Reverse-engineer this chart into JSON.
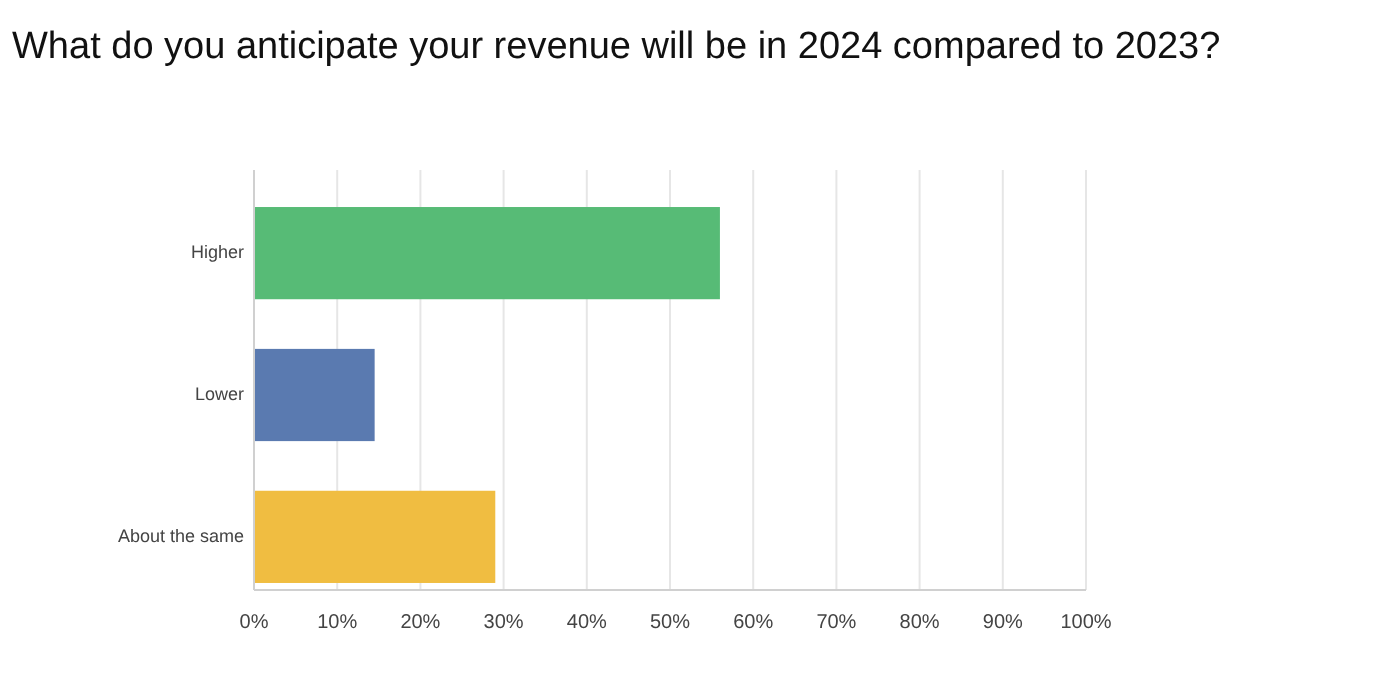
{
  "chart_data": {
    "type": "bar",
    "orientation": "horizontal",
    "title": "What do you anticipate your revenue will be in 2024 compared to 2023?",
    "categories": [
      "Higher",
      "Lower",
      "About the same"
    ],
    "values": [
      56,
      14.5,
      29
    ],
    "colors": [
      "#57bb76",
      "#5a7ab0",
      "#f0bd41"
    ],
    "xlim": [
      0,
      100
    ],
    "xticks": [
      {
        "value": 0,
        "label": "0%"
      },
      {
        "value": 10,
        "label": "10%"
      },
      {
        "value": 20,
        "label": "20%"
      },
      {
        "value": 30,
        "label": "30%"
      },
      {
        "value": 40,
        "label": "40%"
      },
      {
        "value": 50,
        "label": "50%"
      },
      {
        "value": 60,
        "label": "60%"
      },
      {
        "value": 70,
        "label": "70%"
      },
      {
        "value": 80,
        "label": "80%"
      },
      {
        "value": 90,
        "label": "90%"
      },
      {
        "value": 100,
        "label": "100%"
      }
    ],
    "grid": "x"
  }
}
